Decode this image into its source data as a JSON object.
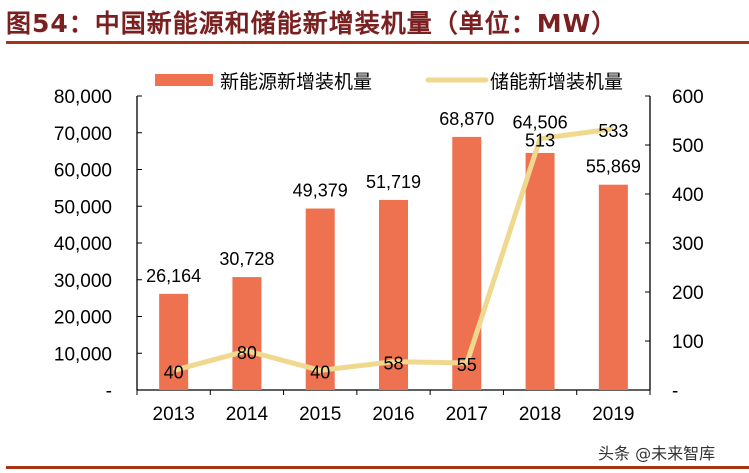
{
  "title": "图54：中国新能源和储能新增装机量（单位：MW）",
  "watermark": "头条 @未来智库",
  "chart_data": {
    "type": "bar+line",
    "categories": [
      "2013",
      "2014",
      "2015",
      "2016",
      "2017",
      "2018",
      "2019"
    ],
    "series": [
      {
        "name": "新能源新增装机量",
        "type": "bar",
        "axis": "left",
        "color": "#ee7150",
        "values": [
          26164,
          30728,
          49379,
          51719,
          68870,
          64506,
          55869
        ],
        "labels": [
          "26,164",
          "30,728",
          "49,379",
          "51,719",
          "68,870",
          "64,506",
          "55,869"
        ]
      },
      {
        "name": "储能新增装机量",
        "type": "line",
        "axis": "right",
        "color": "#f0d88e",
        "values": [
          40,
          80,
          40,
          58,
          55,
          513,
          533
        ],
        "labels": [
          "40",
          "80",
          "40",
          "58",
          "55",
          "513",
          "533"
        ]
      }
    ],
    "left_axis": {
      "range": [
        0,
        80000
      ],
      "ticks": [
        "-",
        "10,000",
        "20,000",
        "30,000",
        "40,000",
        "50,000",
        "60,000",
        "70,000",
        "80,000"
      ]
    },
    "right_axis": {
      "range": [
        0,
        600
      ],
      "ticks": [
        "-",
        "100",
        "200",
        "300",
        "400",
        "500",
        "600"
      ]
    },
    "legend_position": "top",
    "grid": false
  }
}
